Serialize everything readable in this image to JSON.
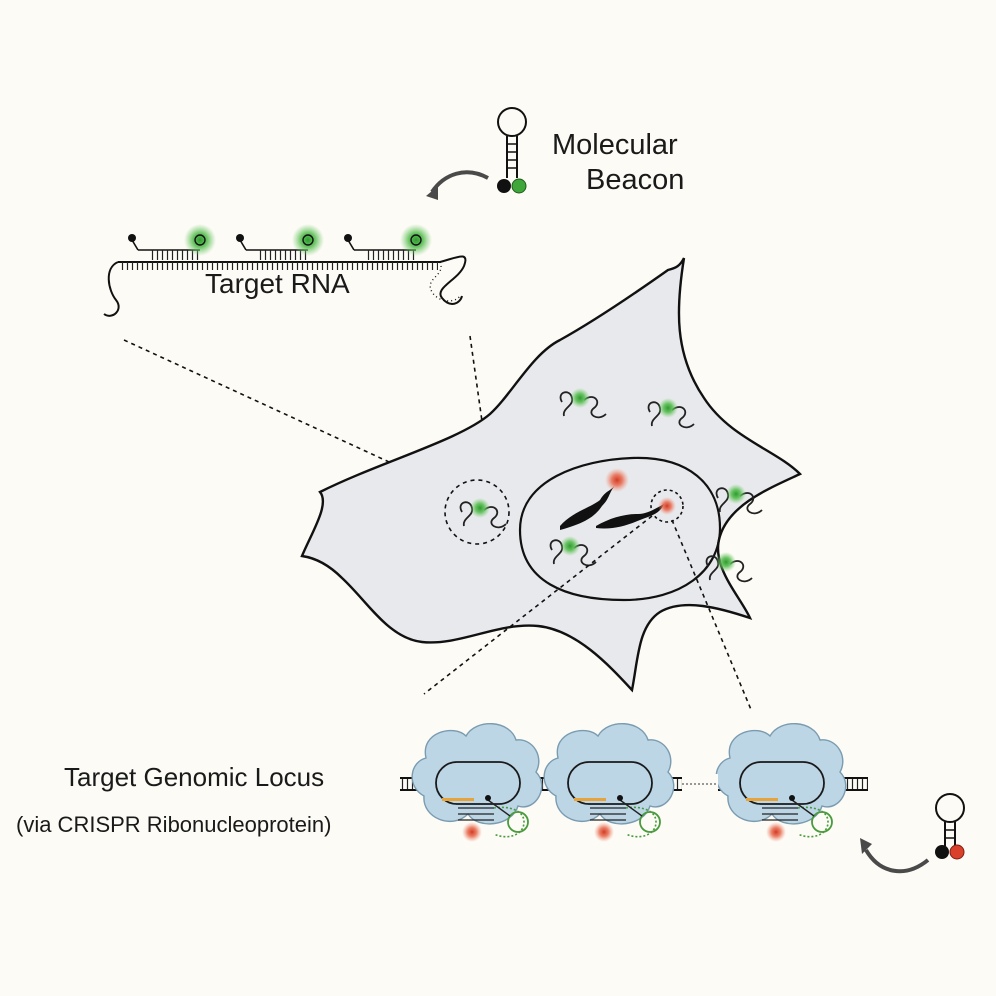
{
  "labels": {
    "beacon_line1": "Molecular",
    "beacon_line2": "Beacon",
    "target_rna": "Target RNA",
    "target_locus": "Target Genomic Locus",
    "target_locus_sub": "(via CRISPR Ribonucleoprotein)"
  },
  "colors": {
    "background": "#fcfbf5",
    "cell_fill": "#e8e9ec",
    "green_fluor": "#3fa63a",
    "red_fluor": "#d9412a",
    "protein_fill": "#bcd6e6",
    "guide_orange": "#e8a23a",
    "quencher": "#111111"
  },
  "icons": [
    "molecular-beacon-hairpin-green",
    "molecular-beacon-hairpin-red",
    "curved-arrow",
    "chromosome",
    "crispr-ribonucleoprotein"
  ]
}
